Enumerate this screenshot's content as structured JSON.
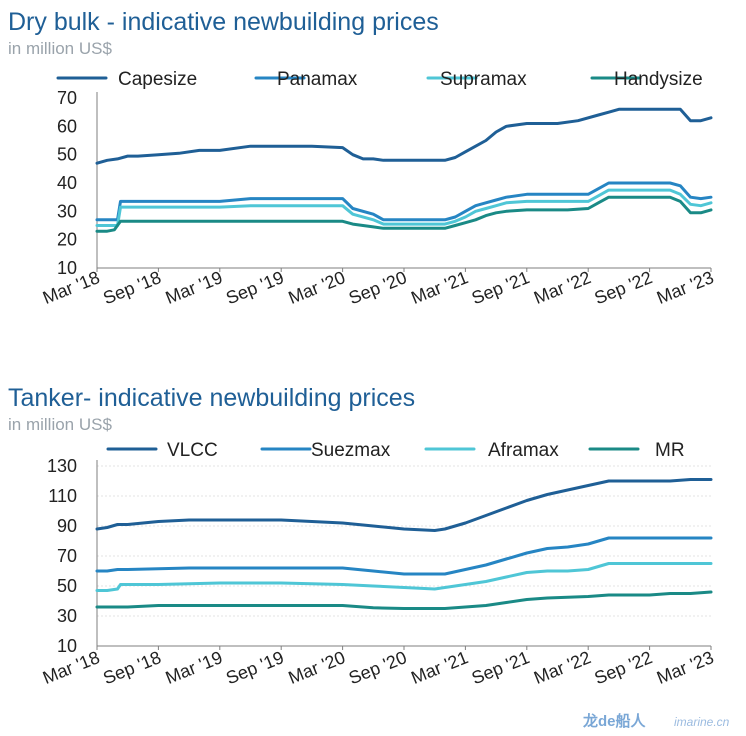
{
  "chart_data": [
    {
      "type": "line",
      "title": "Dry bulk - indicative newbuilding prices",
      "subtitle": "in million US$",
      "ylim": [
        10,
        70
      ],
      "yticks": [
        10,
        20,
        30,
        40,
        50,
        60,
        70
      ],
      "x_tick_labels": [
        "Mar '18",
        "Sep '18",
        "Mar '19",
        "Sep '19",
        "Mar '20",
        "Sep '20",
        "Mar '21",
        "Sep '21",
        "Mar '22",
        "Sep '22",
        "Mar '23"
      ],
      "x_start": 0,
      "x_end": 60,
      "grid": false,
      "legend_position": "top",
      "series": [
        {
          "name": "Capesize",
          "color": "#1f5f96",
          "x": [
            0,
            1,
            2,
            3,
            4,
            6,
            8,
            10,
            12,
            15,
            18,
            21,
            24,
            25,
            26,
            27,
            28,
            30,
            32,
            34,
            35,
            36,
            37,
            38,
            39,
            40,
            42,
            43,
            45,
            47,
            49,
            50,
            51,
            52,
            54,
            56,
            57,
            58,
            59,
            60
          ],
          "y": [
            47,
            48,
            48.5,
            49.5,
            49.5,
            50,
            50.5,
            51.5,
            51.5,
            53,
            53,
            53,
            52.5,
            50,
            48.5,
            48.5,
            48,
            48,
            48,
            48,
            49,
            51,
            53,
            55,
            58,
            60,
            61,
            61,
            61,
            62,
            64,
            65,
            66,
            66,
            66,
            66,
            66,
            62,
            62,
            63
          ]
        },
        {
          "name": "Panamax",
          "color": "#2685c3",
          "x": [
            0,
            1,
            2,
            2.3,
            3,
            8,
            12,
            15,
            18,
            21,
            24,
            25,
            27,
            28,
            30,
            34,
            35,
            36,
            37,
            38,
            39,
            40,
            42,
            44,
            46,
            48,
            49,
            50,
            52,
            54,
            56,
            57,
            58,
            59,
            60
          ],
          "y": [
            27,
            27,
            27,
            33.5,
            33.5,
            33.5,
            33.5,
            34.5,
            34.5,
            34.5,
            34.5,
            31,
            29,
            27,
            27,
            27,
            28,
            30,
            32,
            33,
            34,
            35,
            36,
            36,
            36,
            36,
            38,
            40,
            40,
            40,
            40,
            39,
            35,
            34.5,
            35
          ]
        },
        {
          "name": "Supramax",
          "color": "#4fc6d6",
          "x": [
            0,
            1,
            2,
            2.3,
            3,
            8,
            12,
            15,
            18,
            21,
            24,
            25,
            27,
            28,
            30,
            34,
            35,
            36,
            37,
            38,
            39,
            40,
            42,
            44,
            46,
            48,
            49,
            50,
            52,
            54,
            56,
            57,
            58,
            59,
            60
          ],
          "y": [
            25,
            25,
            25,
            31.5,
            31.5,
            31.5,
            31.5,
            32,
            32,
            32,
            32,
            29,
            27,
            25.5,
            25.5,
            25.5,
            26.5,
            28,
            30,
            31,
            32,
            33,
            33.5,
            33.5,
            33.5,
            33.5,
            35.5,
            37.5,
            37.5,
            37.5,
            37.5,
            36,
            32.5,
            32,
            33
          ]
        },
        {
          "name": "Handysize",
          "color": "#1a8a86",
          "x": [
            0,
            1,
            1.7,
            2.3,
            3,
            8,
            12,
            15,
            18,
            21,
            24,
            25,
            27,
            28,
            30,
            34,
            35,
            36,
            37,
            38,
            39,
            40,
            42,
            44,
            46,
            48,
            49,
            50,
            52,
            54,
            56,
            57,
            58,
            59,
            60
          ],
          "y": [
            23,
            23,
            23.5,
            26.5,
            26.5,
            26.5,
            26.5,
            26.5,
            26.5,
            26.5,
            26.5,
            25.5,
            24.5,
            24,
            24,
            24,
            25,
            26,
            27,
            28.5,
            29.5,
            30,
            30.5,
            30.5,
            30.5,
            31,
            33,
            35,
            35,
            35,
            35,
            33.5,
            29.5,
            29.5,
            30.5
          ]
        }
      ]
    },
    {
      "type": "line",
      "title": "Tanker- indicative newbuilding prices",
      "subtitle": "in million US$",
      "ylim": [
        10,
        130
      ],
      "yticks": [
        10,
        30,
        50,
        70,
        90,
        110,
        130
      ],
      "x_tick_labels": [
        "Mar '18",
        "Sep '18",
        "Mar '19",
        "Sep '19",
        "Mar '20",
        "Sep '20",
        "Mar '21",
        "Sep '21",
        "Mar '22",
        "Sep '22",
        "Mar '23"
      ],
      "x_start": 0,
      "x_end": 60,
      "grid": true,
      "legend_position": "top",
      "series": [
        {
          "name": "VLCC",
          "color": "#1f5f96",
          "x": [
            0,
            1,
            2,
            3,
            6,
            9,
            12,
            18,
            24,
            27,
            30,
            33,
            34,
            36,
            38,
            40,
            42,
            44,
            46,
            48,
            50,
            52,
            54,
            56,
            58,
            60
          ],
          "y": [
            88,
            89,
            91,
            91,
            93,
            94,
            94,
            94,
            92,
            90,
            88,
            87,
            88,
            92,
            97,
            102,
            107,
            111,
            114,
            117,
            120,
            120,
            120,
            120,
            121,
            121
          ]
        },
        {
          "name": "Suezmax",
          "color": "#2685c3",
          "x": [
            0,
            1,
            2,
            3,
            6,
            9,
            12,
            18,
            24,
            27,
            30,
            33,
            34,
            36,
            38,
            40,
            42,
            44,
            46,
            48,
            50,
            52,
            54,
            56,
            58,
            60
          ],
          "y": [
            60,
            60,
            61,
            61,
            61.5,
            62,
            62,
            62,
            62,
            60,
            58,
            58,
            58,
            61,
            64,
            68,
            72,
            75,
            76,
            78,
            82,
            82,
            82,
            82,
            82,
            82
          ]
        },
        {
          "name": "Aframax",
          "color": "#4fc6d6",
          "x": [
            0,
            1,
            2,
            2.3,
            3,
            6,
            9,
            12,
            18,
            24,
            27,
            30,
            33,
            34,
            36,
            38,
            40,
            42,
            44,
            46,
            48,
            50,
            52,
            54,
            56,
            58,
            60
          ],
          "y": [
            47,
            47,
            48,
            51,
            51,
            51,
            51.5,
            52,
            52,
            51,
            50,
            49,
            48,
            49,
            51,
            53,
            56,
            59,
            60,
            60,
            61,
            65,
            65,
            65,
            65,
            65,
            65
          ]
        },
        {
          "name": "MR",
          "color": "#1a8a86",
          "x": [
            0,
            3,
            6,
            9,
            12,
            18,
            24,
            27,
            30,
            33,
            34,
            36,
            38,
            40,
            42,
            44,
            46,
            48,
            50,
            52,
            54,
            56,
            58,
            60
          ],
          "y": [
            36,
            36,
            37,
            37,
            37,
            37,
            37,
            35.5,
            35,
            35,
            35,
            36,
            37,
            39,
            41,
            42,
            42.5,
            43,
            44,
            44,
            44,
            45,
            45,
            46
          ]
        }
      ]
    }
  ],
  "watermark": {
    "logo_text": "龙de船人",
    "site": "imarine.cn"
  }
}
